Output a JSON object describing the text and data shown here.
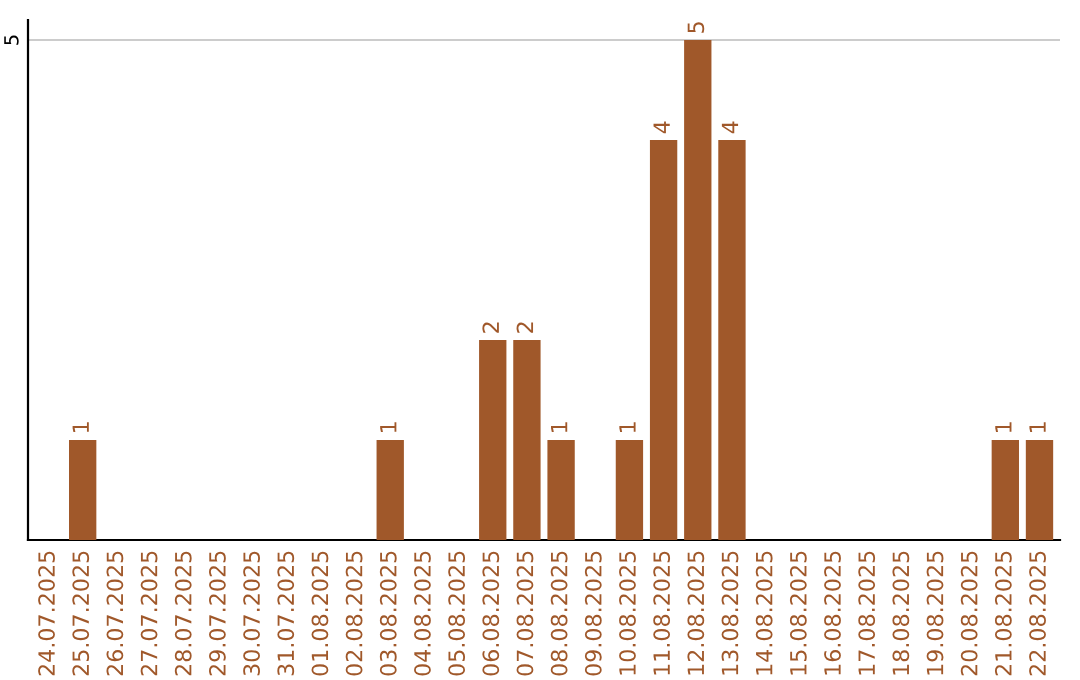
{
  "chart_data": {
    "type": "bar",
    "categories": [
      "24.07.2025",
      "25.07.2025",
      "26.07.2025",
      "27.07.2025",
      "28.07.2025",
      "29.07.2025",
      "30.07.2025",
      "31.07.2025",
      "01.08.2025",
      "02.08.2025",
      "03.08.2025",
      "04.08.2025",
      "05.08.2025",
      "06.08.2025",
      "07.08.2025",
      "08.08.2025",
      "09.08.2025",
      "10.08.2025",
      "11.08.2025",
      "12.08.2025",
      "13.08.2025",
      "14.08.2025",
      "15.08.2025",
      "16.08.2025",
      "17.08.2025",
      "18.08.2025",
      "19.08.2025",
      "20.08.2025",
      "21.08.2025",
      "22.08.2025"
    ],
    "values": [
      0,
      1,
      0,
      0,
      0,
      0,
      0,
      0,
      0,
      0,
      1,
      0,
      0,
      2,
      2,
      1,
      0,
      1,
      4,
      5,
      4,
      0,
      0,
      0,
      0,
      0,
      0,
      0,
      1,
      1
    ],
    "value_labels": [
      null,
      "1",
      null,
      null,
      null,
      null,
      null,
      null,
      null,
      null,
      "1",
      null,
      null,
      "2",
      "2",
      "1",
      null,
      "1",
      "4",
      "5",
      "4",
      null,
      null,
      null,
      null,
      null,
      null,
      null,
      "1",
      "1"
    ],
    "color": "#a0582a",
    "ylim": [
      0,
      5.2
    ],
    "yticks": [
      5
    ],
    "grid": "y",
    "legend": false
  }
}
